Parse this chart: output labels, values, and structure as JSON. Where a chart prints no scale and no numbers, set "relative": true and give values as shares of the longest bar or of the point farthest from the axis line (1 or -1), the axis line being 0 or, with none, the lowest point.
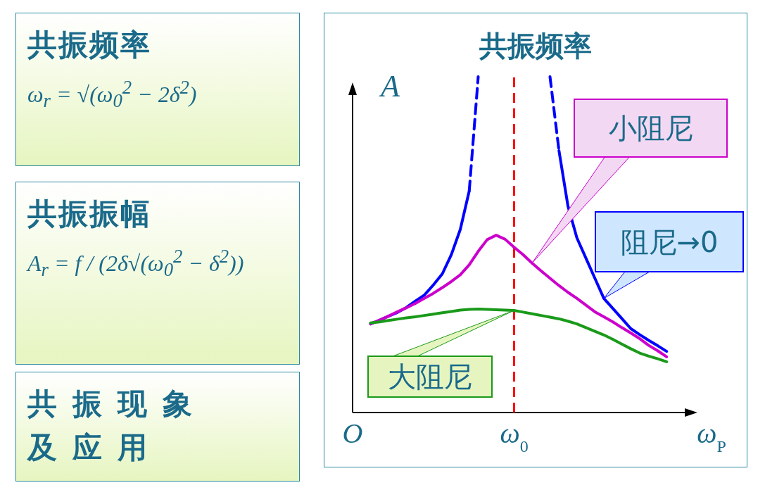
{
  "chart_data": [
    {
      "type": "other",
      "title": "共振频率",
      "annotations": [
        "ω$_{r}$ = √(ω$_{0}$$^{2}$ − 2δ$^{2}$)"
      ]
    },
    {
      "type": "other",
      "title": "共振振幅",
      "annotations": [
        "A$_{r}$ = f / (2δ√(ω$_{0}$$^{2}$ − δ$^{2}$))"
      ]
    },
    {
      "type": "other",
      "title": "共振现象及应用"
    },
    {
      "type": "line",
      "title": "共振频率",
      "ylabel": "A",
      "relative": true,
      "categories": [
        "O",
        null,
        null,
        null,
        null,
        null,
        null,
        null,
        null,
        null,
        null,
        null,
        null,
        null,
        null,
        null,
        null,
        null,
        "ω$_{0}$",
        null,
        null,
        null,
        null,
        null,
        null,
        null,
        null,
        null,
        null,
        null,
        null,
        null,
        null,
        null,
        null,
        null,
        null,
        null,
        null,
        null,
        "ω$_{P}$"
      ],
      "ref_lines": [
        {
          "axis": "x",
          "value": "ω$_{0}$",
          "color": "#ff0000",
          "line_style": "dashed"
        }
      ],
      "series": [
        {
          "name": "阻尼→0",
          "color": "#0000ff",
          "values": [
            null,
            null,
            0.264,
            0.275,
            0.287,
            0.298,
            0.313,
            0.332,
            0.35,
            0.38,
            0.413,
            0.47,
            0.545,
            0.66,
            null,
            null,
            null,
            null,
            null,
            null,
            null,
            null,
            null,
            0.78,
            0.615,
            0.52,
            0.46,
            0.4,
            0.34,
            0.31,
            0.28,
            0.25,
            0.232,
            0.215,
            0.199,
            0.182,
            null,
            null,
            null,
            null,
            null
          ]
        },
        {
          "color": "#0000ff",
          "line_style": "dashed",
          "values": [
            null,
            null,
            null,
            null,
            null,
            null,
            null,
            null,
            null,
            null,
            null,
            null,
            null,
            0.66,
            1.0,
            null,
            null,
            null,
            null,
            null,
            null,
            null,
            1.0,
            0.78,
            null,
            null,
            null,
            null,
            null,
            null,
            null,
            null,
            null,
            null,
            null,
            null,
            null,
            null,
            null,
            null,
            null
          ]
        },
        {
          "name": "小阻尼",
          "color": "#cc00cc",
          "values": [
            null,
            null,
            0.264,
            0.275,
            0.287,
            0.3,
            0.312,
            0.325,
            0.34,
            0.355,
            0.372,
            0.39,
            0.41,
            0.44,
            0.48,
            0.515,
            0.528,
            0.516,
            0.492,
            0.47,
            0.445,
            0.422,
            0.4,
            0.378,
            0.358,
            0.34,
            0.32,
            0.3,
            0.285,
            0.27,
            0.253,
            0.237,
            0.22,
            0.2,
            0.184,
            0.166,
            null,
            null,
            null,
            null,
            null
          ]
        },
        {
          "name": "大阻尼",
          "color": "#1a9a1a",
          "values": [
            null,
            null,
            0.267,
            0.27,
            0.274,
            0.278,
            0.282,
            0.285,
            0.289,
            0.293,
            0.297,
            0.301,
            0.305,
            0.307,
            0.308,
            0.307,
            0.306,
            0.305,
            0.304,
            0.299,
            0.294,
            0.289,
            0.284,
            0.279,
            0.272,
            0.264,
            0.253,
            0.242,
            0.231,
            0.218,
            0.204,
            0.19,
            0.177,
            0.168,
            0.16,
            0.151,
            null,
            null,
            null,
            null,
            null
          ]
        }
      ]
    }
  ]
}
